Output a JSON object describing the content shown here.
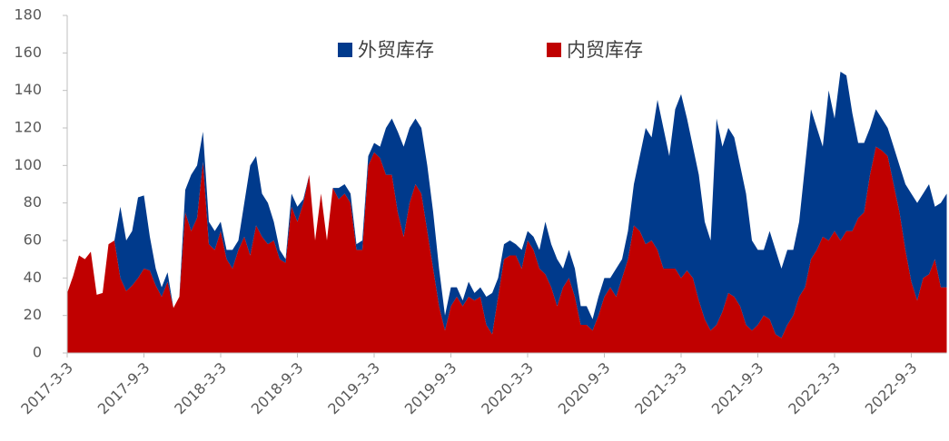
{
  "chart_data": {
    "type": "stacked_area",
    "categories": [
      "2017-3-3",
      null,
      null,
      null,
      null,
      null,
      null,
      null,
      null,
      null,
      null,
      null,
      null,
      "2017-9-3",
      null,
      null,
      null,
      null,
      null,
      null,
      null,
      null,
      null,
      null,
      null,
      null,
      "2018-3-3",
      null,
      null,
      null,
      null,
      null,
      null,
      null,
      null,
      null,
      null,
      null,
      null,
      "2018-9-3",
      null,
      null,
      null,
      null,
      null,
      null,
      null,
      null,
      null,
      null,
      null,
      null,
      "2019-3-3",
      null,
      null,
      null,
      null,
      null,
      null,
      null,
      null,
      null,
      null,
      null,
      null,
      "2019-9-3",
      null,
      null,
      null,
      null,
      null,
      null,
      null,
      null,
      null,
      null,
      null,
      null,
      "2020-3-3",
      null,
      null,
      null,
      null,
      null,
      null,
      null,
      null,
      null,
      null,
      null,
      null,
      "2020-9-3",
      null,
      null,
      null,
      null,
      null,
      null,
      null,
      null,
      null,
      null,
      null,
      null,
      "2021-3-3",
      null,
      null,
      null,
      null,
      null,
      null,
      null,
      null,
      null,
      null,
      null,
      null,
      "2021-9-3",
      null,
      null,
      null,
      null,
      null,
      null,
      null,
      null,
      null,
      null,
      null,
      null,
      "2022-3-3",
      null,
      null,
      null,
      null,
      null,
      null,
      null,
      null,
      null,
      null,
      null,
      null,
      "2022-9-3",
      null,
      null,
      null,
      null,
      null,
      null
    ],
    "series": [
      {
        "name": "外贸库存",
        "color": "#003a8c",
        "values": [
          0,
          0,
          0,
          0,
          0,
          0,
          0,
          0,
          0,
          38,
          27,
          29,
          43,
          39,
          18,
          9,
          5,
          5,
          0,
          0,
          12,
          30,
          28,
          16,
          12,
          10,
          5,
          5,
          10,
          5,
          18,
          48,
          37,
          23,
          22,
          10,
          5,
          2,
          7,
          8,
          2,
          0,
          0,
          0,
          0,
          0,
          6,
          5,
          5,
          3,
          5,
          5,
          5,
          6,
          25,
          30,
          43,
          48,
          40,
          35,
          35,
          35,
          30,
          20,
          8,
          10,
          5,
          3,
          8,
          4,
          5,
          15,
          22,
          10,
          8,
          8,
          6,
          10,
          5,
          7,
          10,
          28,
          23,
          25,
          10,
          15,
          15,
          10,
          10,
          6,
          10,
          10,
          5,
          15,
          10,
          15,
          22,
          40,
          62,
          55,
          80,
          75,
          60,
          85,
          98,
          81,
          70,
          67,
          52,
          48,
          110,
          88,
          88,
          85,
          75,
          70,
          48,
          40,
          35,
          47,
          45,
          37,
          40,
          35,
          40,
          65,
          80,
          65,
          48,
          80,
          60,
          90,
          83,
          63,
          40,
          37,
          25,
          20,
          17,
          15,
          20,
          25,
          35,
          47,
          52,
          45,
          48,
          28,
          45,
          50
        ]
      },
      {
        "name": "内贸库存",
        "color": "#c00000",
        "values": [
          32,
          41,
          52,
          50,
          54,
          31,
          32,
          58,
          60,
          40,
          33,
          36,
          40,
          45,
          44,
          36,
          30,
          38,
          24,
          30,
          75,
          65,
          72,
          102,
          58,
          55,
          65,
          50,
          45,
          55,
          62,
          52,
          68,
          62,
          58,
          60,
          50,
          48,
          78,
          70,
          80,
          95,
          60,
          85,
          60,
          88,
          82,
          85,
          80,
          55,
          55,
          100,
          107,
          104,
          95,
          95,
          75,
          62,
          80,
          90,
          85,
          65,
          45,
          25,
          12,
          25,
          30,
          25,
          30,
          28,
          30,
          15,
          10,
          30,
          50,
          52,
          52,
          45,
          60,
          55,
          45,
          42,
          35,
          25,
          35,
          40,
          30,
          15,
          15,
          12,
          20,
          30,
          35,
          30,
          40,
          50,
          68,
          65,
          58,
          60,
          55,
          45,
          45,
          45,
          40,
          44,
          40,
          28,
          18,
          12,
          15,
          22,
          32,
          30,
          25,
          15,
          12,
          15,
          20,
          18,
          10,
          8,
          15,
          20,
          30,
          35,
          50,
          55,
          62,
          60,
          65,
          60,
          65,
          65,
          72,
          75,
          95,
          110,
          108,
          105,
          90,
          75,
          55,
          38,
          28,
          40,
          42,
          50,
          35,
          35
        ]
      }
    ],
    "ylim": [
      0,
      180
    ],
    "yticks": [
      0,
      20,
      40,
      60,
      80,
      100,
      120,
      140,
      160,
      180
    ],
    "grid": false,
    "legend": "top"
  }
}
